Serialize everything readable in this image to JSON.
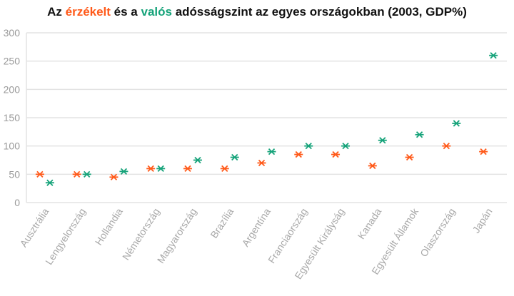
{
  "colors": {
    "perceived": "#ff5a1a",
    "actual": "#16a37a",
    "grid": "#e3e3e3",
    "text": "#111111"
  },
  "chart_data": {
    "type": "scatter",
    "title_parts": [
      "Az ",
      "érzékelt",
      " és a ",
      "valós",
      " adósságszint az egyes országokban (2003, GDP%)"
    ],
    "xlabel": "",
    "ylabel": "",
    "ylim": [
      0,
      300
    ],
    "yticks": [
      0,
      50,
      100,
      150,
      200,
      250,
      300
    ],
    "grid": true,
    "marker": "asterisk",
    "categories": [
      "Ausztrália",
      "Lengyelország",
      "Hollandia",
      "Németország",
      "Magyarország",
      "Brazília",
      "Argentína",
      "Franciaország",
      "Egyesült Királyság",
      "Kanada",
      "Egyesült Államok",
      "Olaszország",
      "Japán"
    ],
    "series": [
      {
        "name": "érzékelt",
        "color": "#ff5a1a",
        "values": [
          50,
          50,
          45,
          60,
          60,
          60,
          70,
          85,
          85,
          65,
          80,
          100,
          90
        ]
      },
      {
        "name": "valós",
        "color": "#16a37a",
        "values": [
          35,
          50,
          55,
          60,
          75,
          80,
          90,
          100,
          100,
          110,
          120,
          140,
          260
        ]
      }
    ]
  }
}
